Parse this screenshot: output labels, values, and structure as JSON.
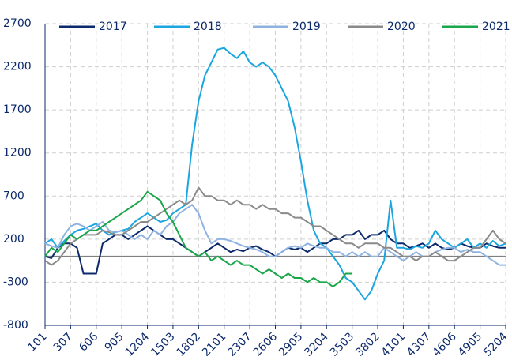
{
  "chart_data": {
    "type": "line",
    "categories": [
      "101",
      null,
      null,
      null,
      "307",
      null,
      null,
      null,
      "606",
      null,
      null,
      null,
      "905",
      null,
      null,
      null,
      "1204",
      null,
      null,
      null,
      "1503",
      null,
      null,
      null,
      "1802",
      null,
      null,
      null,
      "2101",
      null,
      null,
      null,
      "2307",
      null,
      null,
      null,
      "2606",
      null,
      null,
      null,
      "2905",
      null,
      null,
      null,
      "3204",
      null,
      null,
      null,
      "3503",
      null,
      null,
      null,
      "3802",
      null,
      null,
      null,
      "4101",
      null,
      null,
      null,
      "4307",
      null,
      null,
      null,
      "4606",
      null,
      null,
      null,
      "4905",
      null,
      null,
      null,
      "5204"
    ],
    "series": [
      {
        "name": "2017",
        "color": "#0c2a6b",
        "values": [
          0,
          -20,
          100,
          150,
          150,
          100,
          -200,
          -200,
          -200,
          150,
          200,
          250,
          250,
          200,
          250,
          300,
          350,
          300,
          250,
          200,
          200,
          150,
          100,
          50,
          0,
          50,
          100,
          150,
          100,
          50,
          80,
          60,
          100,
          120,
          80,
          50,
          0,
          50,
          100,
          80,
          100,
          50,
          100,
          150,
          150,
          200,
          200,
          250,
          250,
          300,
          200,
          250,
          250,
          300,
          200,
          150,
          150,
          100,
          120,
          150,
          100,
          150,
          100,
          80,
          100,
          150,
          120,
          100,
          100,
          150,
          120,
          100,
          100
        ]
      },
      {
        "name": "2018",
        "color": "#1ba6e0",
        "values": [
          150,
          200,
          100,
          180,
          250,
          300,
          320,
          350,
          380,
          300,
          250,
          280,
          300,
          320,
          400,
          450,
          500,
          450,
          400,
          420,
          500,
          550,
          600,
          1300,
          1800,
          2100,
          2250,
          2400,
          2420,
          2350,
          2300,
          2380,
          2250,
          2200,
          2250,
          2200,
          2100,
          1950,
          1800,
          1500,
          1100,
          650,
          300,
          150,
          100,
          0,
          -100,
          -250,
          -300,
          -400,
          -500,
          -400,
          -200,
          -50,
          650,
          100,
          100,
          80,
          120,
          100,
          150,
          300,
          200,
          150,
          100,
          150,
          200,
          100,
          150,
          100,
          180,
          120,
          150
        ]
      },
      {
        "name": "2019",
        "color": "#8fb3e0",
        "values": [
          150,
          120,
          100,
          250,
          350,
          380,
          350,
          300,
          350,
          400,
          300,
          280,
          300,
          250,
          200,
          250,
          200,
          300,
          250,
          350,
          400,
          500,
          550,
          600,
          500,
          300,
          150,
          200,
          200,
          180,
          150,
          120,
          100,
          80,
          50,
          0,
          0,
          50,
          100,
          120,
          100,
          150,
          120,
          100,
          100,
          50,
          50,
          0,
          50,
          0,
          50,
          0,
          0,
          100,
          50,
          0,
          -50,
          0,
          50,
          0,
          0,
          50,
          80,
          100,
          100,
          50,
          80,
          50,
          50,
          0,
          -50,
          -100,
          -100
        ]
      },
      {
        "name": "2020",
        "color": "#8a8a8a",
        "values": [
          -50,
          -100,
          -50,
          50,
          150,
          200,
          250,
          250,
          250,
          300,
          280,
          250,
          250,
          300,
          350,
          400,
          400,
          450,
          500,
          550,
          600,
          650,
          600,
          650,
          800,
          700,
          700,
          650,
          650,
          600,
          650,
          600,
          600,
          550,
          600,
          550,
          550,
          500,
          500,
          450,
          450,
          400,
          350,
          350,
          300,
          250,
          200,
          150,
          150,
          100,
          150,
          150,
          150,
          100,
          100,
          50,
          0,
          0,
          -50,
          0,
          0,
          50,
          0,
          -50,
          -50,
          0,
          50,
          100,
          100,
          200,
          300,
          200,
          150
        ]
      },
      {
        "name": "2021",
        "color": "#1aa64a",
        "values": [
          0,
          100,
          50,
          150,
          250,
          200,
          250,
          300,
          300,
          350,
          400,
          450,
          500,
          550,
          600,
          650,
          750,
          700,
          650,
          500,
          400,
          250,
          100,
          50,
          0,
          50,
          -50,
          0,
          -50,
          -100,
          -50,
          -100,
          -100,
          -150,
          -200,
          -150,
          -200,
          -250,
          -200,
          -250,
          -250,
          -300,
          -250,
          -300,
          -300,
          -350,
          -300,
          -200,
          -200,
          null,
          null,
          null,
          null,
          null,
          null,
          null,
          null,
          null,
          null,
          null,
          null,
          null,
          null,
          null,
          null,
          null,
          null,
          null,
          null,
          null,
          null,
          null,
          null
        ]
      }
    ],
    "ylim": [
      -800,
      2700
    ],
    "yticks": [
      -800,
      -300,
      200,
      700,
      1200,
      1700,
      2200,
      2700
    ],
    "grid": true,
    "legend": "top"
  }
}
